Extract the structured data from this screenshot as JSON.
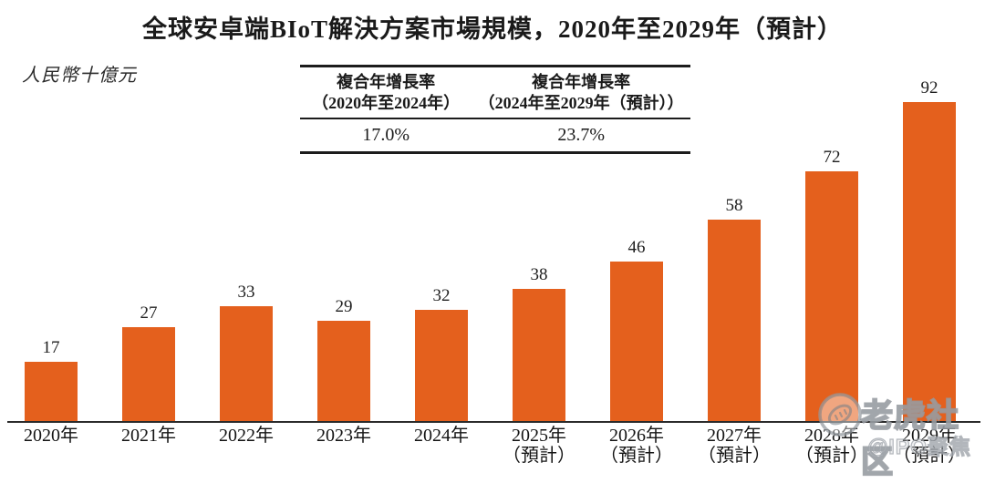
{
  "title": "全球安卓端BIoT解決方案市場規模，2020年至2029年（預計）",
  "unit_label": "人民幣十億元",
  "cagr_table": {
    "columns": [
      {
        "header_line1": "複合年增長率",
        "header_line2": "（2020年至2024年）",
        "value": "17.0%"
      },
      {
        "header_line1": "複合年增長率",
        "header_line2": "（2024年至2029年（預計））",
        "value": "23.7%"
      }
    ]
  },
  "chart_data": {
    "type": "bar",
    "title": "全球安卓端BIoT解決方案市場規模，2020年至2029年（預計）",
    "ylabel": "人民幣十億元",
    "xlabel": "",
    "categories": [
      "2020年",
      "2021年",
      "2022年",
      "2023年",
      "2024年",
      "2025年（預計）",
      "2026年（預計）",
      "2027年（預計）",
      "2028年（預計）",
      "2029年（預計）"
    ],
    "x_labels": [
      {
        "year": "2020年",
        "note": ""
      },
      {
        "year": "2021年",
        "note": ""
      },
      {
        "year": "2022年",
        "note": ""
      },
      {
        "year": "2023年",
        "note": ""
      },
      {
        "year": "2024年",
        "note": ""
      },
      {
        "year": "2025年",
        "note": "（預計）"
      },
      {
        "year": "2026年",
        "note": "（預計）"
      },
      {
        "year": "2027年",
        "note": "（預計）"
      },
      {
        "year": "2028年",
        "note": "（預計）"
      },
      {
        "year": "2029年",
        "note": "（預計）"
      }
    ],
    "values": [
      17,
      27,
      33,
      29,
      32,
      38,
      46,
      58,
      72,
      92
    ],
    "ylim": [
      0,
      92
    ],
    "grid": false,
    "legend": "none",
    "annotations": {
      "cagr_2020_2024": "17.0%",
      "cagr_2024_2029": "23.7%"
    },
    "bar_color": "#E4601D"
  },
  "watermark": {
    "icon": "tiger-circle-icon",
    "brand": "老虎社区",
    "handle": "@IPO聚焦"
  },
  "colors": {
    "bar": "#E4601D",
    "axis": "#2B2B2B",
    "text": "#1A1A1A",
    "watermark_gray": "#969BA1",
    "background": "#FFFFFF"
  }
}
